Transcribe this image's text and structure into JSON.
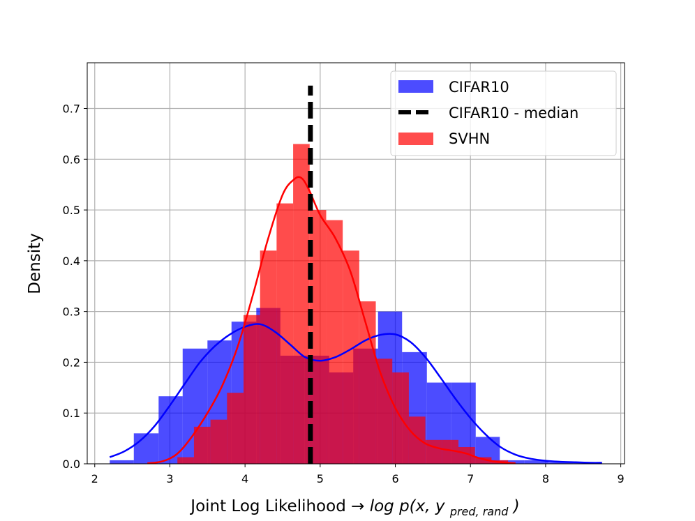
{
  "chart_data": {
    "type": "histogram",
    "xlabel": "Joint Log Likelihood",
    "xlabel_arrow": "→",
    "xlabel_math": {
      "prefix": "log p(x, y",
      "subscript": "pred, rand",
      "suffix": ")"
    },
    "ylabel": "Density",
    "xlim": [
      1.9,
      9.05
    ],
    "ylim": [
      0,
      0.79
    ],
    "xticks": [
      2,
      3,
      4,
      5,
      6,
      7,
      8,
      9
    ],
    "yticks": [
      0.0,
      0.1,
      0.2,
      0.3,
      0.4,
      0.5,
      0.6,
      0.7
    ],
    "ytick_labels": [
      "0.0",
      "0.1",
      "0.2",
      "0.3",
      "0.4",
      "0.5",
      "0.6",
      "0.7"
    ],
    "grid": true,
    "legend_position": "top-right",
    "series": [
      {
        "name": "CIFAR10",
        "kind": "histogram",
        "color": "#0000ff",
        "alpha": 0.7,
        "bins": [
          {
            "x0": 2.2,
            "x1": 2.52,
            "y": 0.007
          },
          {
            "x0": 2.52,
            "x1": 2.85,
            "y": 0.06
          },
          {
            "x0": 2.85,
            "x1": 3.17,
            "y": 0.133
          },
          {
            "x0": 3.17,
            "x1": 3.5,
            "y": 0.227
          },
          {
            "x0": 3.5,
            "x1": 3.82,
            "y": 0.243
          },
          {
            "x0": 3.82,
            "x1": 4.15,
            "y": 0.28
          },
          {
            "x0": 4.15,
            "x1": 4.47,
            "y": 0.307
          },
          {
            "x0": 4.47,
            "x1": 4.79,
            "y": 0.213
          },
          {
            "x0": 4.79,
            "x1": 5.12,
            "y": 0.213
          },
          {
            "x0": 5.12,
            "x1": 5.44,
            "y": 0.18
          },
          {
            "x0": 5.44,
            "x1": 5.77,
            "y": 0.227
          },
          {
            "x0": 5.77,
            "x1": 6.09,
            "y": 0.3
          },
          {
            "x0": 6.09,
            "x1": 6.42,
            "y": 0.22
          },
          {
            "x0": 6.42,
            "x1": 6.74,
            "y": 0.16
          },
          {
            "x0": 6.74,
            "x1": 7.07,
            "y": 0.16
          },
          {
            "x0": 7.07,
            "x1": 7.39,
            "y": 0.053
          },
          {
            "x0": 7.39,
            "x1": 7.72,
            "y": 0.007
          },
          {
            "x0": 7.72,
            "x1": 8.04,
            "y": 0.007
          },
          {
            "x0": 8.04,
            "x1": 8.37,
            "y": 0.003
          },
          {
            "x0": 8.37,
            "x1": 8.75,
            "y": 0.003
          }
        ],
        "kde": {
          "color": "#0000ff",
          "x": [
            2.2,
            2.4,
            2.6,
            2.8,
            3.0,
            3.2,
            3.4,
            3.6,
            3.8,
            4.0,
            4.2,
            4.4,
            4.6,
            4.8,
            5.0,
            5.2,
            5.4,
            5.6,
            5.8,
            6.0,
            6.2,
            6.4,
            6.6,
            6.8,
            7.0,
            7.2,
            7.4,
            7.6,
            7.8,
            8.0,
            8.2,
            8.4,
            8.6,
            8.75
          ],
          "y": [
            0.013,
            0.025,
            0.045,
            0.075,
            0.115,
            0.158,
            0.2,
            0.232,
            0.255,
            0.27,
            0.275,
            0.26,
            0.235,
            0.21,
            0.203,
            0.21,
            0.225,
            0.243,
            0.254,
            0.255,
            0.24,
            0.21,
            0.17,
            0.128,
            0.09,
            0.058,
            0.033,
            0.018,
            0.01,
            0.006,
            0.004,
            0.003,
            0.002,
            0.002
          ]
        }
      },
      {
        "name": "CIFAR10 - median",
        "kind": "vline",
        "color": "#000000",
        "x": 4.87,
        "y_range": [
          0,
          0.745
        ]
      },
      {
        "name": "SVHN",
        "kind": "histogram",
        "color": "#ff0000",
        "alpha": 0.7,
        "bins": [
          {
            "x0": 3.1,
            "x1": 3.32,
            "y": 0.013
          },
          {
            "x0": 3.32,
            "x1": 3.54,
            "y": 0.073
          },
          {
            "x0": 3.54,
            "x1": 3.76,
            "y": 0.087
          },
          {
            "x0": 3.76,
            "x1": 3.98,
            "y": 0.14
          },
          {
            "x0": 3.98,
            "x1": 4.2,
            "y": 0.293
          },
          {
            "x0": 4.2,
            "x1": 4.42,
            "y": 0.42
          },
          {
            "x0": 4.42,
            "x1": 4.64,
            "y": 0.513
          },
          {
            "x0": 4.64,
            "x1": 4.86,
            "y": 0.63
          },
          {
            "x0": 4.86,
            "x1": 5.08,
            "y": 0.5
          },
          {
            "x0": 5.08,
            "x1": 5.3,
            "y": 0.48
          },
          {
            "x0": 5.3,
            "x1": 5.52,
            "y": 0.42
          },
          {
            "x0": 5.52,
            "x1": 5.74,
            "y": 0.32
          },
          {
            "x0": 5.74,
            "x1": 5.96,
            "y": 0.207
          },
          {
            "x0": 5.96,
            "x1": 6.18,
            "y": 0.18
          },
          {
            "x0": 6.18,
            "x1": 6.4,
            "y": 0.093
          },
          {
            "x0": 6.4,
            "x1": 6.62,
            "y": 0.047
          },
          {
            "x0": 6.62,
            "x1": 6.84,
            "y": 0.047
          },
          {
            "x0": 6.84,
            "x1": 7.06,
            "y": 0.033
          },
          {
            "x0": 7.06,
            "x1": 7.28,
            "y": 0.013
          },
          {
            "x0": 7.28,
            "x1": 7.5,
            "y": 0.007
          }
        ],
        "kde": {
          "color": "#ff0000",
          "x": [
            2.7,
            2.9,
            3.1,
            3.3,
            3.5,
            3.7,
            3.9,
            4.1,
            4.3,
            4.5,
            4.65,
            4.75,
            4.85,
            5.0,
            5.2,
            5.4,
            5.6,
            5.8,
            6.0,
            6.2,
            6.4,
            6.6,
            6.8,
            6.95,
            7.1,
            7.3,
            7.5,
            7.6
          ],
          "y": [
            0.001,
            0.005,
            0.02,
            0.055,
            0.1,
            0.155,
            0.23,
            0.33,
            0.44,
            0.53,
            0.56,
            0.563,
            0.54,
            0.49,
            0.445,
            0.38,
            0.28,
            0.18,
            0.11,
            0.065,
            0.04,
            0.03,
            0.025,
            0.02,
            0.012,
            0.005,
            0.002,
            0.001
          ]
        }
      }
    ]
  }
}
